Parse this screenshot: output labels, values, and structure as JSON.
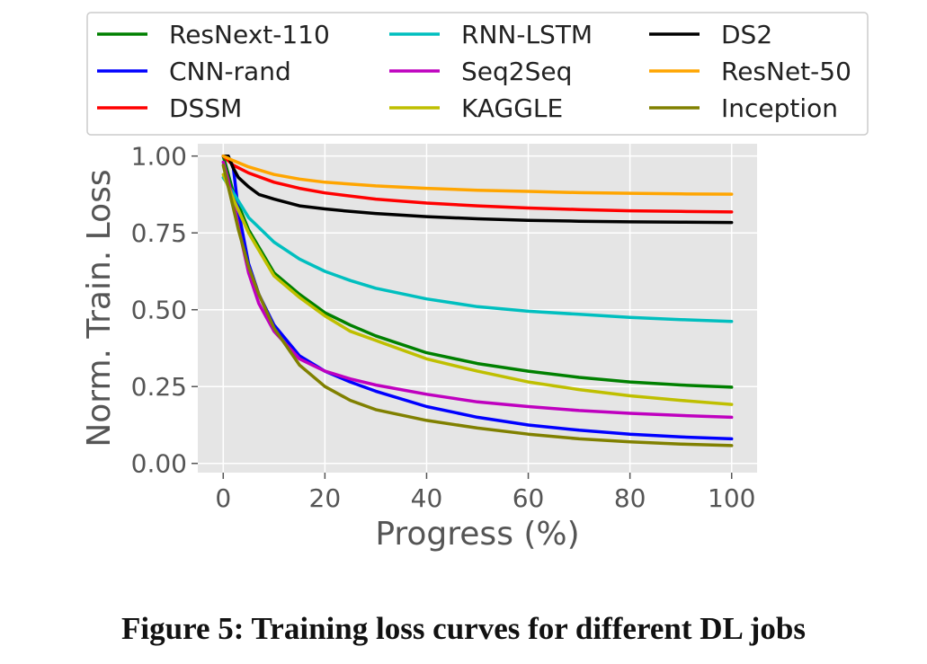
{
  "caption": "Figure 5: Training loss curves for different DL jobs",
  "chart_data": {
    "type": "line",
    "title": "",
    "xlabel": "Progress (%)",
    "ylabel": "Norm. Train. Loss",
    "xlim": [
      -5,
      105
    ],
    "ylim": [
      -0.03,
      1.04
    ],
    "xticks": [
      0,
      20,
      40,
      60,
      80,
      100
    ],
    "xtick_labels": [
      "0",
      "20",
      "40",
      "60",
      "80",
      "100"
    ],
    "yticks": [
      0,
      0.25,
      0.5,
      0.75,
      1.0
    ],
    "ytick_labels": [
      "0.00",
      "0.25",
      "0.50",
      "0.75",
      "1.00"
    ],
    "grid": true,
    "background": "#e5e5e5",
    "legend_position": "top",
    "legend_columns": 3,
    "series": [
      {
        "name": "ResNext-110",
        "color": "#008000",
        "x": [
          0,
          2,
          5,
          10,
          15,
          20,
          25,
          30,
          40,
          50,
          60,
          70,
          80,
          90,
          100
        ],
        "y": [
          1.0,
          0.88,
          0.76,
          0.62,
          0.55,
          0.49,
          0.45,
          0.415,
          0.36,
          0.325,
          0.3,
          0.28,
          0.265,
          0.255,
          0.248
        ]
      },
      {
        "name": "CNN-rand",
        "color": "#0000ff",
        "x": [
          0,
          1,
          2,
          3,
          5,
          7,
          10,
          15,
          20,
          25,
          30,
          40,
          50,
          60,
          70,
          80,
          90,
          100
        ],
        "y": [
          1.0,
          1.0,
          0.96,
          0.82,
          0.65,
          0.55,
          0.45,
          0.35,
          0.3,
          0.265,
          0.235,
          0.185,
          0.15,
          0.125,
          0.108,
          0.095,
          0.086,
          0.08
        ]
      },
      {
        "name": "DSSM",
        "color": "#ff0000",
        "x": [
          0,
          1,
          2,
          5,
          10,
          15,
          20,
          30,
          40,
          50,
          60,
          70,
          80,
          90,
          100
        ],
        "y": [
          1.0,
          0.985,
          0.97,
          0.945,
          0.915,
          0.895,
          0.88,
          0.86,
          0.847,
          0.838,
          0.831,
          0.826,
          0.822,
          0.82,
          0.818
        ]
      },
      {
        "name": "RNN-LSTM",
        "color": "#00bfbf",
        "x": [
          0,
          2,
          5,
          10,
          15,
          20,
          25,
          30,
          40,
          50,
          60,
          70,
          80,
          90,
          100
        ],
        "y": [
          0.93,
          0.88,
          0.8,
          0.72,
          0.665,
          0.625,
          0.595,
          0.57,
          0.535,
          0.51,
          0.495,
          0.485,
          0.475,
          0.468,
          0.462
        ]
      },
      {
        "name": "Seq2Seq",
        "color": "#bf00bf",
        "x": [
          0,
          1,
          2,
          3,
          5,
          7,
          10,
          15,
          20,
          25,
          30,
          40,
          50,
          60,
          70,
          80,
          90,
          100
        ],
        "y": [
          0.98,
          0.92,
          0.85,
          0.77,
          0.62,
          0.52,
          0.43,
          0.34,
          0.3,
          0.275,
          0.255,
          0.225,
          0.2,
          0.185,
          0.172,
          0.163,
          0.156,
          0.15
        ]
      },
      {
        "name": "KAGGLE",
        "color": "#bfbf00",
        "x": [
          0,
          2,
          5,
          10,
          15,
          20,
          25,
          30,
          40,
          50,
          60,
          70,
          80,
          90,
          100
        ],
        "y": [
          0.94,
          0.86,
          0.75,
          0.61,
          0.54,
          0.48,
          0.43,
          0.4,
          0.34,
          0.3,
          0.265,
          0.24,
          0.22,
          0.205,
          0.192
        ]
      },
      {
        "name": "DS2",
        "color": "#000000",
        "x": [
          0,
          1,
          2,
          3,
          5,
          7,
          10,
          15,
          20,
          25,
          30,
          40,
          50,
          60,
          70,
          80,
          90,
          100
        ],
        "y": [
          1.0,
          1.0,
          0.96,
          0.93,
          0.9,
          0.875,
          0.86,
          0.838,
          0.828,
          0.82,
          0.813,
          0.803,
          0.796,
          0.791,
          0.788,
          0.786,
          0.785,
          0.784
        ]
      },
      {
        "name": "ResNet-50",
        "color": "#ffa500",
        "x": [
          0,
          2,
          5,
          10,
          15,
          20,
          30,
          40,
          50,
          60,
          70,
          80,
          90,
          100
        ],
        "y": [
          1.0,
          0.985,
          0.965,
          0.94,
          0.925,
          0.915,
          0.903,
          0.895,
          0.889,
          0.885,
          0.881,
          0.879,
          0.877,
          0.876
        ]
      },
      {
        "name": "Inception",
        "color": "#808000",
        "x": [
          0,
          1,
          2,
          3,
          5,
          7,
          10,
          15,
          20,
          25,
          30,
          40,
          50,
          60,
          70,
          80,
          90,
          100
        ],
        "y": [
          0.97,
          0.9,
          0.83,
          0.76,
          0.64,
          0.55,
          0.44,
          0.32,
          0.25,
          0.205,
          0.175,
          0.14,
          0.115,
          0.095,
          0.08,
          0.07,
          0.063,
          0.058
        ]
      }
    ]
  }
}
